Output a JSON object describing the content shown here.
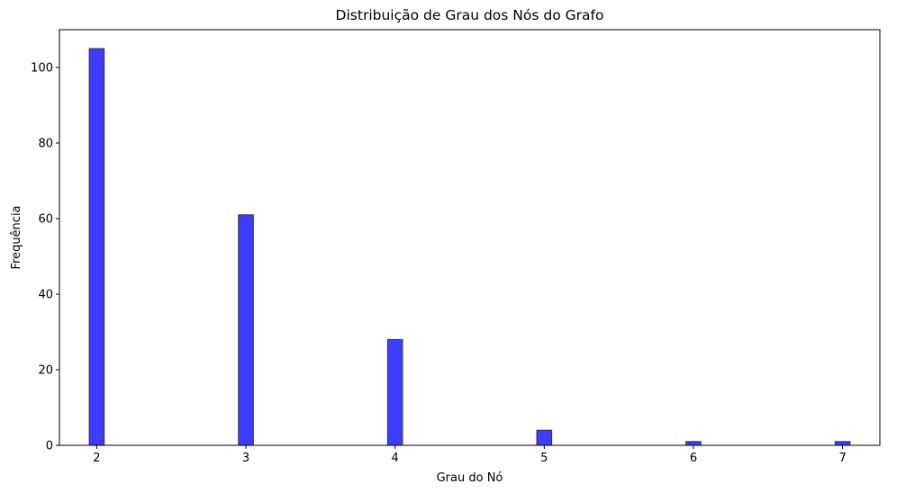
{
  "chart_data": {
    "type": "bar",
    "title": "Distribuição de Grau dos Nós do Grafo",
    "xlabel": "Grau do Nó",
    "ylabel": "Frequência",
    "x_ticks": [
      2,
      3,
      4,
      5,
      6,
      7
    ],
    "y_ticks": [
      0,
      20,
      40,
      60,
      80,
      100
    ],
    "xlim": [
      1.75,
      7.25
    ],
    "ylim": [
      0,
      110
    ],
    "bin_width": 0.1,
    "bars": [
      {
        "x": 2,
        "value": 105
      },
      {
        "x": 3,
        "value": 61
      },
      {
        "x": 4,
        "value": 28
      },
      {
        "x": 5,
        "value": 4
      },
      {
        "x": 6,
        "value": 1
      },
      {
        "x": 7,
        "value": 1
      }
    ],
    "bar_color": "#3d3dff",
    "bar_edge_color": "#333333",
    "grid": false
  }
}
